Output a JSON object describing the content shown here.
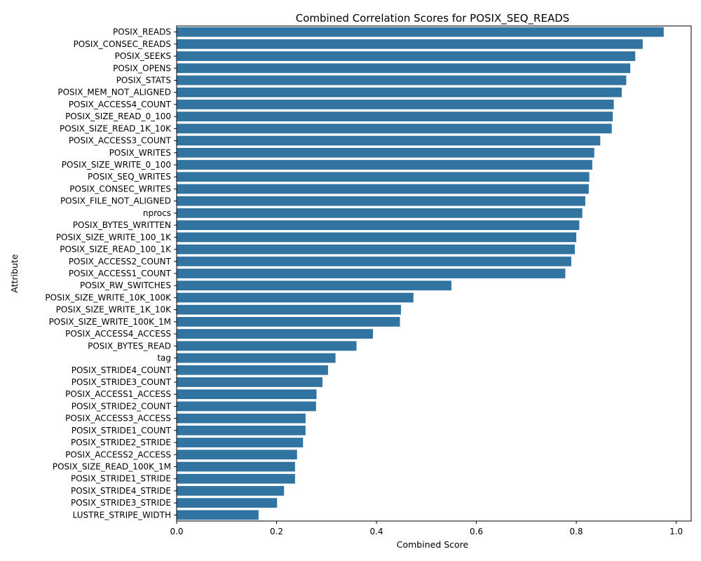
{
  "chart_data": {
    "type": "bar",
    "orientation": "horizontal",
    "title": "Combined Correlation Scores for POSIX_SEQ_READS",
    "xlabel": "Combined Score",
    "ylabel": "Attribute",
    "xlim": [
      0,
      1.03
    ],
    "xticks": [
      "0.0",
      "0.2",
      "0.4",
      "0.6",
      "0.8",
      "1.0"
    ],
    "bar_color": "#3274a1",
    "grid": false,
    "categories": [
      "POSIX_READS",
      "POSIX_CONSEC_READS",
      "POSIX_SEEKS",
      "POSIX_OPENS",
      "POSIX_STATS",
      "POSIX_MEM_NOT_ALIGNED",
      "POSIX_ACCESS4_COUNT",
      "POSIX_SIZE_READ_0_100",
      "POSIX_SIZE_READ_1K_10K",
      "POSIX_ACCESS3_COUNT",
      "POSIX_WRITES",
      "POSIX_SIZE_WRITE_0_100",
      "POSIX_SEQ_WRITES",
      "POSIX_CONSEC_WRITES",
      "POSIX_FILE_NOT_ALIGNED",
      "nprocs",
      "POSIX_BYTES_WRITTEN",
      "POSIX_SIZE_WRITE_100_1K",
      "POSIX_SIZE_READ_100_1K",
      "POSIX_ACCESS2_COUNT",
      "POSIX_ACCESS1_COUNT",
      "POSIX_RW_SWITCHES",
      "POSIX_SIZE_WRITE_10K_100K",
      "POSIX_SIZE_WRITE_1K_10K",
      "POSIX_SIZE_WRITE_100K_1M",
      "POSIX_ACCESS4_ACCESS",
      "POSIX_BYTES_READ",
      "tag",
      "POSIX_STRIDE4_COUNT",
      "POSIX_STRIDE3_COUNT",
      "POSIX_ACCESS1_ACCESS",
      "POSIX_STRIDE2_COUNT",
      "POSIX_ACCESS3_ACCESS",
      "POSIX_STRIDE1_COUNT",
      "POSIX_STRIDE2_STRIDE",
      "POSIX_ACCESS2_ACCESS",
      "POSIX_SIZE_READ_100K_1M",
      "POSIX_STRIDE1_STRIDE",
      "POSIX_STRIDE4_STRIDE",
      "POSIX_STRIDE3_STRIDE",
      "LUSTRE_STRIPE_WIDTH"
    ],
    "values": [
      0.975,
      0.933,
      0.918,
      0.908,
      0.9,
      0.891,
      0.875,
      0.873,
      0.871,
      0.848,
      0.836,
      0.832,
      0.826,
      0.825,
      0.818,
      0.812,
      0.806,
      0.8,
      0.797,
      0.79,
      0.778,
      0.55,
      0.474,
      0.449,
      0.447,
      0.393,
      0.36,
      0.318,
      0.303,
      0.292,
      0.28,
      0.279,
      0.258,
      0.258,
      0.253,
      0.241,
      0.237,
      0.237,
      0.215,
      0.201,
      0.164
    ]
  }
}
